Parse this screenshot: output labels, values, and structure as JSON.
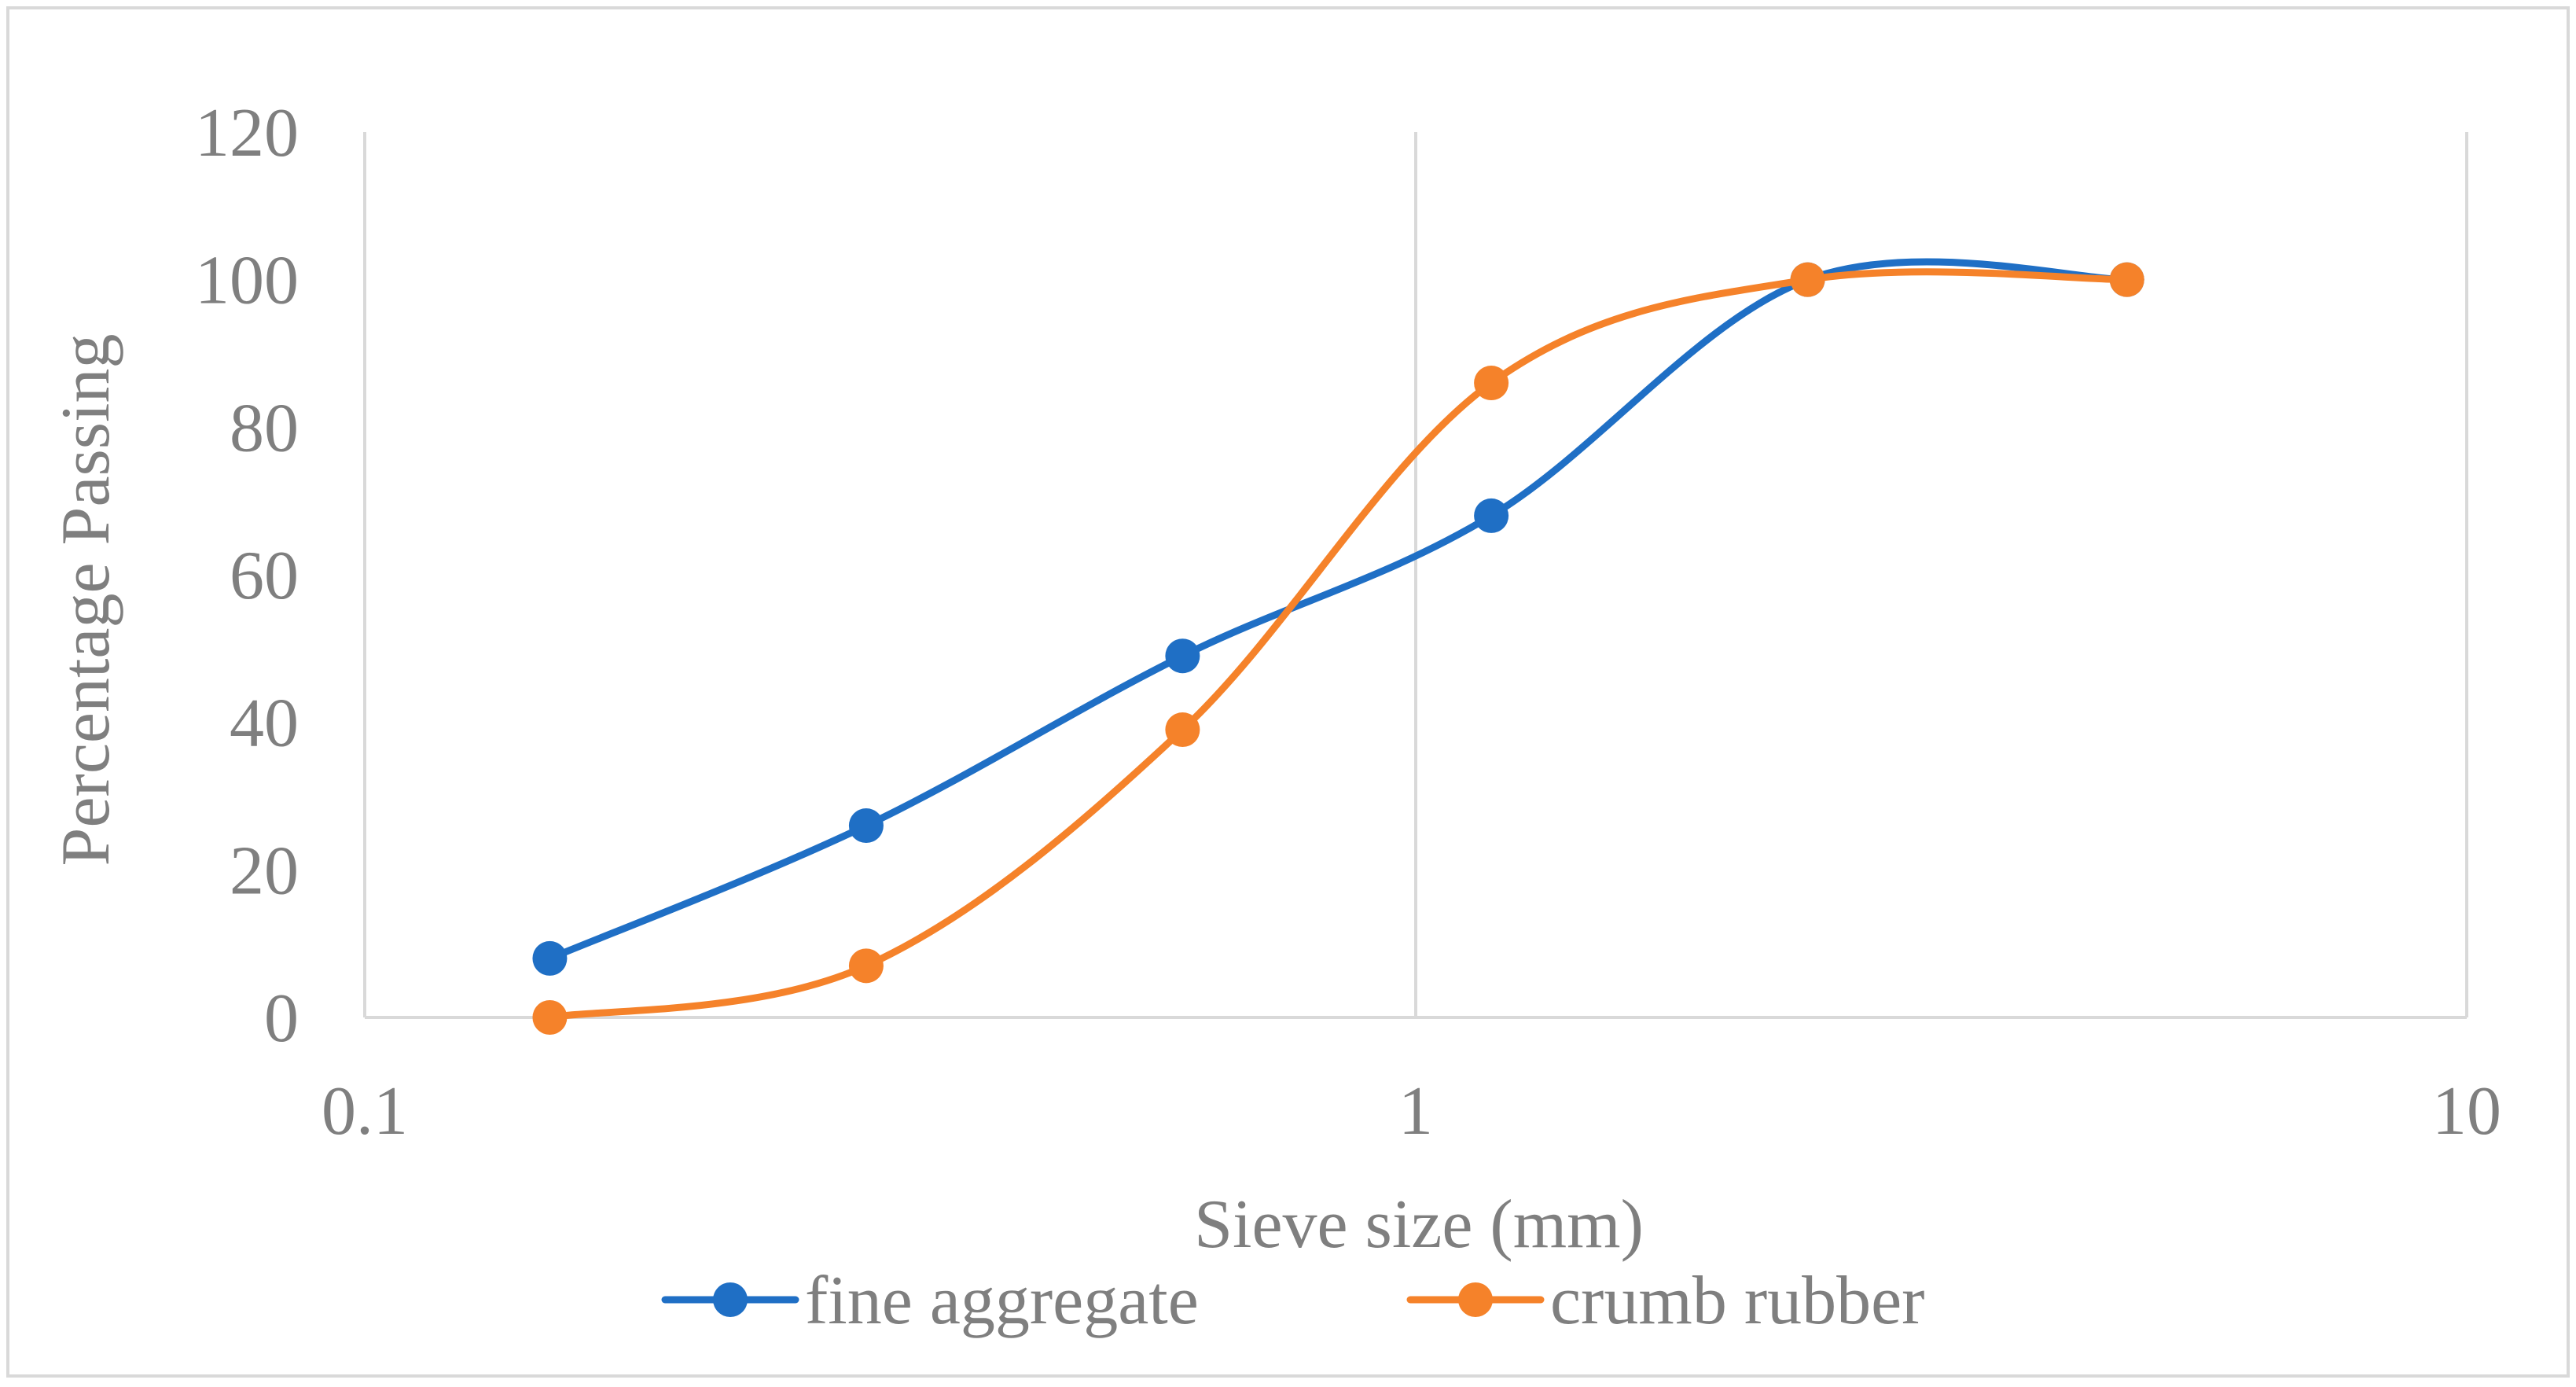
{
  "chart_data": {
    "type": "scatter",
    "title": "",
    "xlabel": "Sieve size (mm)",
    "ylabel": "Percentage Passing",
    "x_scale": "log",
    "xlim": [
      0.1,
      10
    ],
    "ylim": [
      0,
      120
    ],
    "x_ticks": [
      "0.1",
      "1",
      "10"
    ],
    "y_ticks": [
      "0",
      "20",
      "40",
      "60",
      "80",
      "100",
      "120"
    ],
    "grid": "vertical major gridlines",
    "legend_position": "bottom",
    "line_style": "smoothed lines with markers",
    "series": [
      {
        "name": "fine aggregate",
        "color": "#1f6fc5",
        "points": [
          {
            "x": 0.15,
            "y": 8
          },
          {
            "x": 0.3,
            "y": 26
          },
          {
            "x": 0.6,
            "y": 49
          },
          {
            "x": 1.18,
            "y": 68
          },
          {
            "x": 2.36,
            "y": 100
          },
          {
            "x": 4.75,
            "y": 100
          }
        ]
      },
      {
        "name": "crumb rubber",
        "color": "#f5822a",
        "points": [
          {
            "x": 0.15,
            "y": 0
          },
          {
            "x": 0.3,
            "y": 7
          },
          {
            "x": 0.6,
            "y": 39
          },
          {
            "x": 1.18,
            "y": 86
          },
          {
            "x": 2.36,
            "y": 100
          },
          {
            "x": 4.75,
            "y": 100
          }
        ]
      }
    ]
  }
}
